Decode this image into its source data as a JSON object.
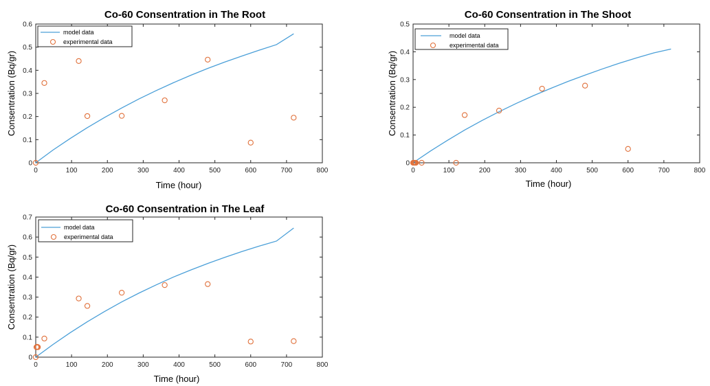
{
  "chart_data": [
    {
      "id": "root",
      "type": "line",
      "title": "Co-60 Consentration in The Root",
      "xlabel": "Time (hour)",
      "ylabel": "Consentration (Bq/gr)",
      "xlim": [
        0,
        800
      ],
      "ylim": [
        0,
        0.6
      ],
      "xticks": [
        0,
        100,
        200,
        300,
        400,
        500,
        600,
        700,
        800
      ],
      "yticks": [
        0,
        0.1,
        0.2,
        0.3,
        0.4,
        0.5,
        0.6
      ],
      "grid": false,
      "legend_position": "top-left",
      "series": [
        {
          "name": "model data",
          "style": "line",
          "color": "#4a9fd8",
          "x": [
            0,
            48,
            96,
            144,
            192,
            240,
            288,
            336,
            384,
            432,
            480,
            528,
            576,
            624,
            672,
            720
          ],
          "y": [
            0,
            0.055,
            0.105,
            0.152,
            0.196,
            0.237,
            0.276,
            0.312,
            0.346,
            0.378,
            0.408,
            0.436,
            0.462,
            0.487,
            0.511,
            0.558
          ]
        },
        {
          "name": "experimental data",
          "style": "markers",
          "color": "#e0703a",
          "x": [
            0,
            24,
            120,
            144,
            240,
            360,
            480,
            600,
            720
          ],
          "y": [
            0,
            0.345,
            0.44,
            0.202,
            0.203,
            0.27,
            0.446,
            0.087,
            0.195
          ]
        }
      ]
    },
    {
      "id": "shoot",
      "type": "line",
      "title": "Co-60 Consentration in The Shoot",
      "xlabel": "Time (hour)",
      "ylabel": "Consentration (Bq/gr)",
      "xlim": [
        0,
        800
      ],
      "ylim": [
        0,
        0.5
      ],
      "xticks": [
        0,
        100,
        200,
        300,
        400,
        500,
        600,
        700,
        800
      ],
      "yticks": [
        0,
        0.1,
        0.2,
        0.3,
        0.4,
        0.5
      ],
      "grid": false,
      "legend_position": "top-left",
      "series": [
        {
          "name": "model data",
          "style": "line",
          "color": "#4a9fd8",
          "x": [
            0,
            48,
            96,
            144,
            192,
            240,
            288,
            336,
            384,
            432,
            480,
            528,
            576,
            624,
            672,
            720
          ],
          "y": [
            0,
            0.042,
            0.081,
            0.118,
            0.152,
            0.184,
            0.214,
            0.242,
            0.268,
            0.293,
            0.316,
            0.338,
            0.359,
            0.378,
            0.396,
            0.41
          ]
        },
        {
          "name": "experimental data",
          "style": "markers",
          "color": "#e0703a",
          "x": [
            0,
            2,
            4,
            6,
            8,
            24,
            120,
            144,
            240,
            360,
            480,
            600
          ],
          "y": [
            0,
            0,
            0,
            0,
            0,
            0,
            0,
            0.172,
            0.188,
            0.267,
            0.278,
            0.05
          ]
        }
      ]
    },
    {
      "id": "leaf",
      "type": "line",
      "title": "Co-60 Consentration in The Leaf",
      "xlabel": "Time (hour)",
      "ylabel": "Consentration (Bq/gr)",
      "xlim": [
        0,
        800
      ],
      "ylim": [
        0,
        0.7
      ],
      "xticks": [
        0,
        100,
        200,
        300,
        400,
        500,
        600,
        700,
        800
      ],
      "yticks": [
        0,
        0.1,
        0.2,
        0.3,
        0.4,
        0.5,
        0.6,
        0.7
      ],
      "grid": false,
      "legend_position": "top-left",
      "series": [
        {
          "name": "model data",
          "style": "line",
          "color": "#4a9fd8",
          "x": [
            0,
            48,
            96,
            144,
            192,
            240,
            288,
            336,
            384,
            432,
            480,
            528,
            576,
            624,
            672,
            720
          ],
          "y": [
            0,
            0.063,
            0.122,
            0.177,
            0.228,
            0.276,
            0.32,
            0.361,
            0.4,
            0.435,
            0.468,
            0.499,
            0.528,
            0.555,
            0.58,
            0.645
          ]
        },
        {
          "name": "experimental data",
          "style": "markers",
          "color": "#e0703a",
          "x": [
            0,
            2,
            4,
            6,
            24,
            120,
            144,
            240,
            360,
            480,
            600,
            720
          ],
          "y": [
            0,
            0.05,
            0.052,
            0.05,
            0.093,
            0.293,
            0.256,
            0.322,
            0.36,
            0.365,
            0.078,
            0.08
          ]
        }
      ]
    }
  ]
}
